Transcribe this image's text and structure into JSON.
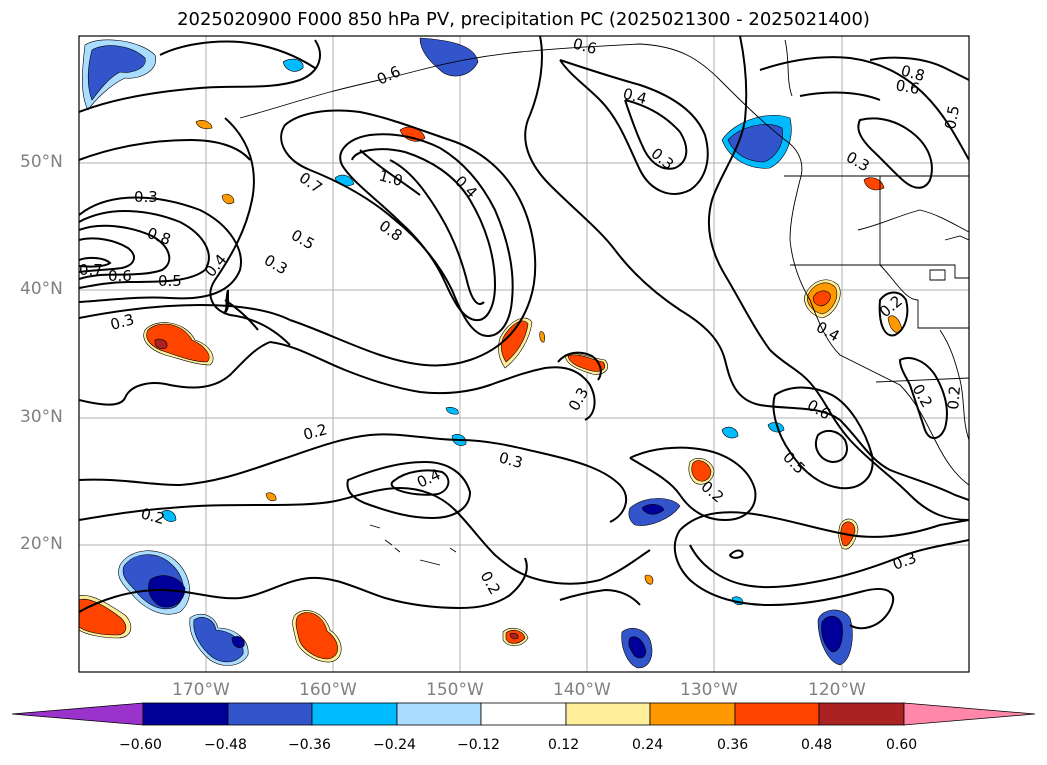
{
  "title": "2025020900 F000 850 hPa PV, precipitation PC (2025021300 - 2025021400)",
  "map": {
    "extent": {
      "lon_min": -180,
      "lon_max": -110,
      "lat_min": 10,
      "lat_max": 60
    },
    "projection": "PlateCarree",
    "grid": true,
    "features": [
      "coastlines",
      "state-borders",
      "country-borders"
    ]
  },
  "lat_ticks": [
    "50°N",
    "40°N",
    "30°N",
    "20°N"
  ],
  "lon_ticks": [
    "170°W",
    "160°W",
    "150°W",
    "140°W",
    "130°W",
    "120°W"
  ],
  "colorbar": {
    "extend": "both",
    "tick_labels": [
      "−0.60",
      "−0.48",
      "−0.36",
      "−0.24",
      "−0.12",
      "0.12",
      "0.24",
      "0.36",
      "0.48",
      "0.60"
    ],
    "colors": [
      "#9933cc",
      "#000099",
      "#3355cc",
      "#00bbff",
      "#aaddff",
      "#ffffff",
      "#ffee99",
      "#ff9900",
      "#ff4400",
      "#aa2222",
      "#ff88aa"
    ]
  },
  "contour_labels": [
    "0.3",
    "0.8",
    "0.6",
    "0.5",
    "0.7",
    "0.4",
    "0.3",
    "0.3",
    "0.7",
    "0.5",
    "1.0",
    "0.8",
    "0.4",
    "0.6",
    "0.4",
    "0.3",
    "0.8",
    "0.6",
    "0.5",
    "0.3",
    "0.4",
    "0.2",
    "0.6",
    "0.5",
    "0.2",
    "0.3",
    "0.2",
    "0.3",
    "0.4",
    "0.2",
    "0.2",
    "0.3",
    "0.2",
    "0.6",
    "0.2"
  ]
}
